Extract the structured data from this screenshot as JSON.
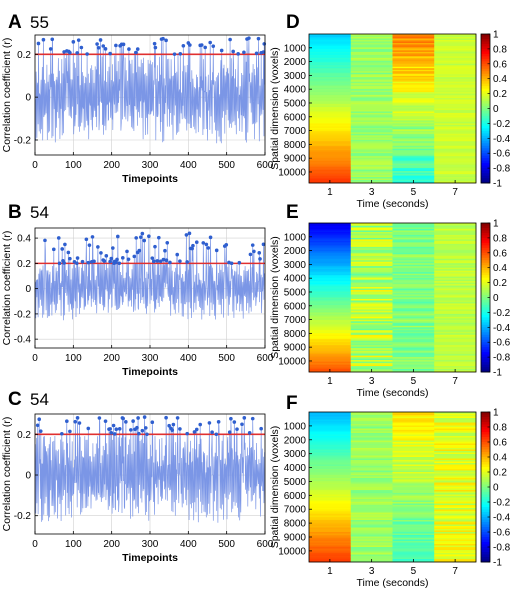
{
  "chart_data": [
    {
      "panel": "A",
      "label": "55",
      "type": "line",
      "xlabel": "Timepoints",
      "ylabel": "Correlation coefficient (r)",
      "xlim": [
        0,
        600
      ],
      "ylim": [
        -0.27,
        0.29
      ],
      "xticks": [
        0,
        100,
        200,
        300,
        400,
        500,
        600
      ],
      "yticks": [
        -0.2,
        0,
        0.2
      ],
      "ytick_labels": [
        "-0.2",
        "0",
        "0.2"
      ],
      "threshold": 0.2,
      "peaks_marked": true,
      "seed": 55,
      "amplitude": 0.14,
      "grid": true,
      "colors": {
        "line": "#7b96e6",
        "threshold": "#e03030",
        "marker": "#2f5fcf"
      }
    },
    {
      "panel": "B",
      "label": "54",
      "type": "line",
      "xlabel": "Timepoints",
      "ylabel": "Correlation coefficient (r)",
      "xlim": [
        0,
        600
      ],
      "ylim": [
        -0.47,
        0.48
      ],
      "xticks": [
        0,
        100,
        200,
        300,
        400,
        500,
        600
      ],
      "yticks": [
        -0.4,
        -0.2,
        0,
        0.2,
        0.4
      ],
      "ytick_labels": [
        "-0.4",
        "-0.2",
        "0",
        "0.2",
        "0.4"
      ],
      "threshold": 0.2,
      "peaks_marked": true,
      "seed": 54,
      "amplitude": 0.16,
      "grid": true,
      "colors": {
        "line": "#7b96e6",
        "threshold": "#e03030",
        "marker": "#2f5fcf"
      }
    },
    {
      "panel": "C",
      "label": "54",
      "type": "line",
      "xlabel": "Timepoints",
      "ylabel": "Correlation coefficient (r)",
      "xlim": [
        0,
        600
      ],
      "ylim": [
        -0.29,
        0.3
      ],
      "xticks": [
        0,
        100,
        200,
        300,
        400,
        500,
        600
      ],
      "yticks": [
        -0.2,
        0,
        0.2
      ],
      "ytick_labels": [
        "-0.2",
        "0",
        "0.2"
      ],
      "threshold": 0.2,
      "peaks_marked": true,
      "seed": 541,
      "amplitude": 0.15,
      "grid": true,
      "colors": {
        "line": "#7b96e6",
        "threshold": "#e03030",
        "marker": "#2f5fcf"
      }
    },
    {
      "panel": "D",
      "type": "heatmap",
      "xlabel": "Time (seconds)",
      "ylabel": "Spatial dimension (voxels)",
      "xticks": [
        1,
        3,
        5,
        7
      ],
      "yticks": [
        1000,
        2000,
        3000,
        4000,
        5000,
        6000,
        7000,
        8000,
        9000,
        10000
      ],
      "ylim": [
        0,
        10800
      ],
      "columns": [
        {
          "time": 1,
          "mode": "gradient",
          "top": -0.35,
          "bottom": 0.65,
          "noise": 0.02
        },
        {
          "time": 3,
          "mode": "noise",
          "mean": 0.05,
          "noise": 0.08
        },
        {
          "time": 5,
          "mode": "gradient",
          "top": 0.5,
          "bottom": -0.2,
          "noise": 0.1
        },
        {
          "time": 7,
          "mode": "noise",
          "mean": 0.15,
          "noise": 0.05
        }
      ],
      "colorbar": {
        "min": -1,
        "max": 1,
        "ticks": [
          1,
          0.8,
          0.6,
          0.4,
          0.2,
          0,
          -0.2,
          -0.4,
          -0.6,
          -0.8,
          -1
        ],
        "tick_labels": [
          "1",
          "0.8",
          "0.6",
          "0.4",
          "0.2",
          "0",
          "-0.2",
          "-0.4",
          "-0.6",
          "-0.8",
          "-1"
        ],
        "colormap": "jet"
      }
    },
    {
      "panel": "E",
      "type": "heatmap",
      "xlabel": "Time (seconds)",
      "ylabel": "Spatial dimension (voxels)",
      "xticks": [
        1,
        3,
        5,
        7
      ],
      "yticks": [
        1000,
        2000,
        3000,
        4000,
        5000,
        6000,
        7000,
        8000,
        9000,
        10000
      ],
      "ylim": [
        0,
        10800
      ],
      "columns": [
        {
          "time": 1,
          "mode": "gradient",
          "top": -0.8,
          "bottom": 0.6,
          "noise": 0.02
        },
        {
          "time": 3,
          "mode": "noise",
          "mean": 0.1,
          "noise": 0.18
        },
        {
          "time": 5,
          "mode": "noise",
          "mean": 0.0,
          "noise": 0.1
        },
        {
          "time": 7,
          "mode": "noise",
          "mean": 0.12,
          "noise": 0.06
        }
      ],
      "colorbar": {
        "min": -1,
        "max": 1,
        "ticks": [
          1,
          0.8,
          0.6,
          0.4,
          0.2,
          0,
          -0.2,
          -0.4,
          -0.6,
          -0.8,
          -1
        ],
        "tick_labels": [
          "1",
          "0.8",
          "0.6",
          "0.4",
          "0.2",
          "0",
          "-0.2",
          "-0.4",
          "-0.6",
          "-0.8",
          "-1"
        ],
        "colormap": "jet"
      }
    },
    {
      "panel": "F",
      "type": "heatmap",
      "xlabel": "Time (seconds)",
      "ylabel": "Spatial dimension (voxels)",
      "xticks": [
        1,
        3,
        5,
        7
      ],
      "yticks": [
        1000,
        2000,
        3000,
        4000,
        5000,
        6000,
        7000,
        8000,
        9000,
        10000
      ],
      "ylim": [
        0,
        10800
      ],
      "columns": [
        {
          "time": 1,
          "mode": "gradient",
          "top": -0.4,
          "bottom": 0.65,
          "noise": 0.02
        },
        {
          "time": 3,
          "mode": "noise",
          "mean": 0.05,
          "noise": 0.08
        },
        {
          "time": 5,
          "mode": "gradient",
          "top": 0.3,
          "bottom": -0.15,
          "noise": 0.08
        },
        {
          "time": 7,
          "mode": "noise",
          "mean": 0.2,
          "noise": 0.12
        }
      ],
      "colorbar": {
        "min": -1,
        "max": 1,
        "ticks": [
          1,
          0.8,
          0.6,
          0.4,
          0.2,
          0,
          -0.2,
          -0.4,
          -0.6,
          -0.8,
          -1
        ],
        "tick_labels": [
          "1",
          "0.8",
          "0.6",
          "0.4",
          "0.2",
          "0",
          "-0.2",
          "-0.4",
          "-0.6",
          "-0.8",
          "-1"
        ],
        "colormap": "jet"
      }
    }
  ]
}
